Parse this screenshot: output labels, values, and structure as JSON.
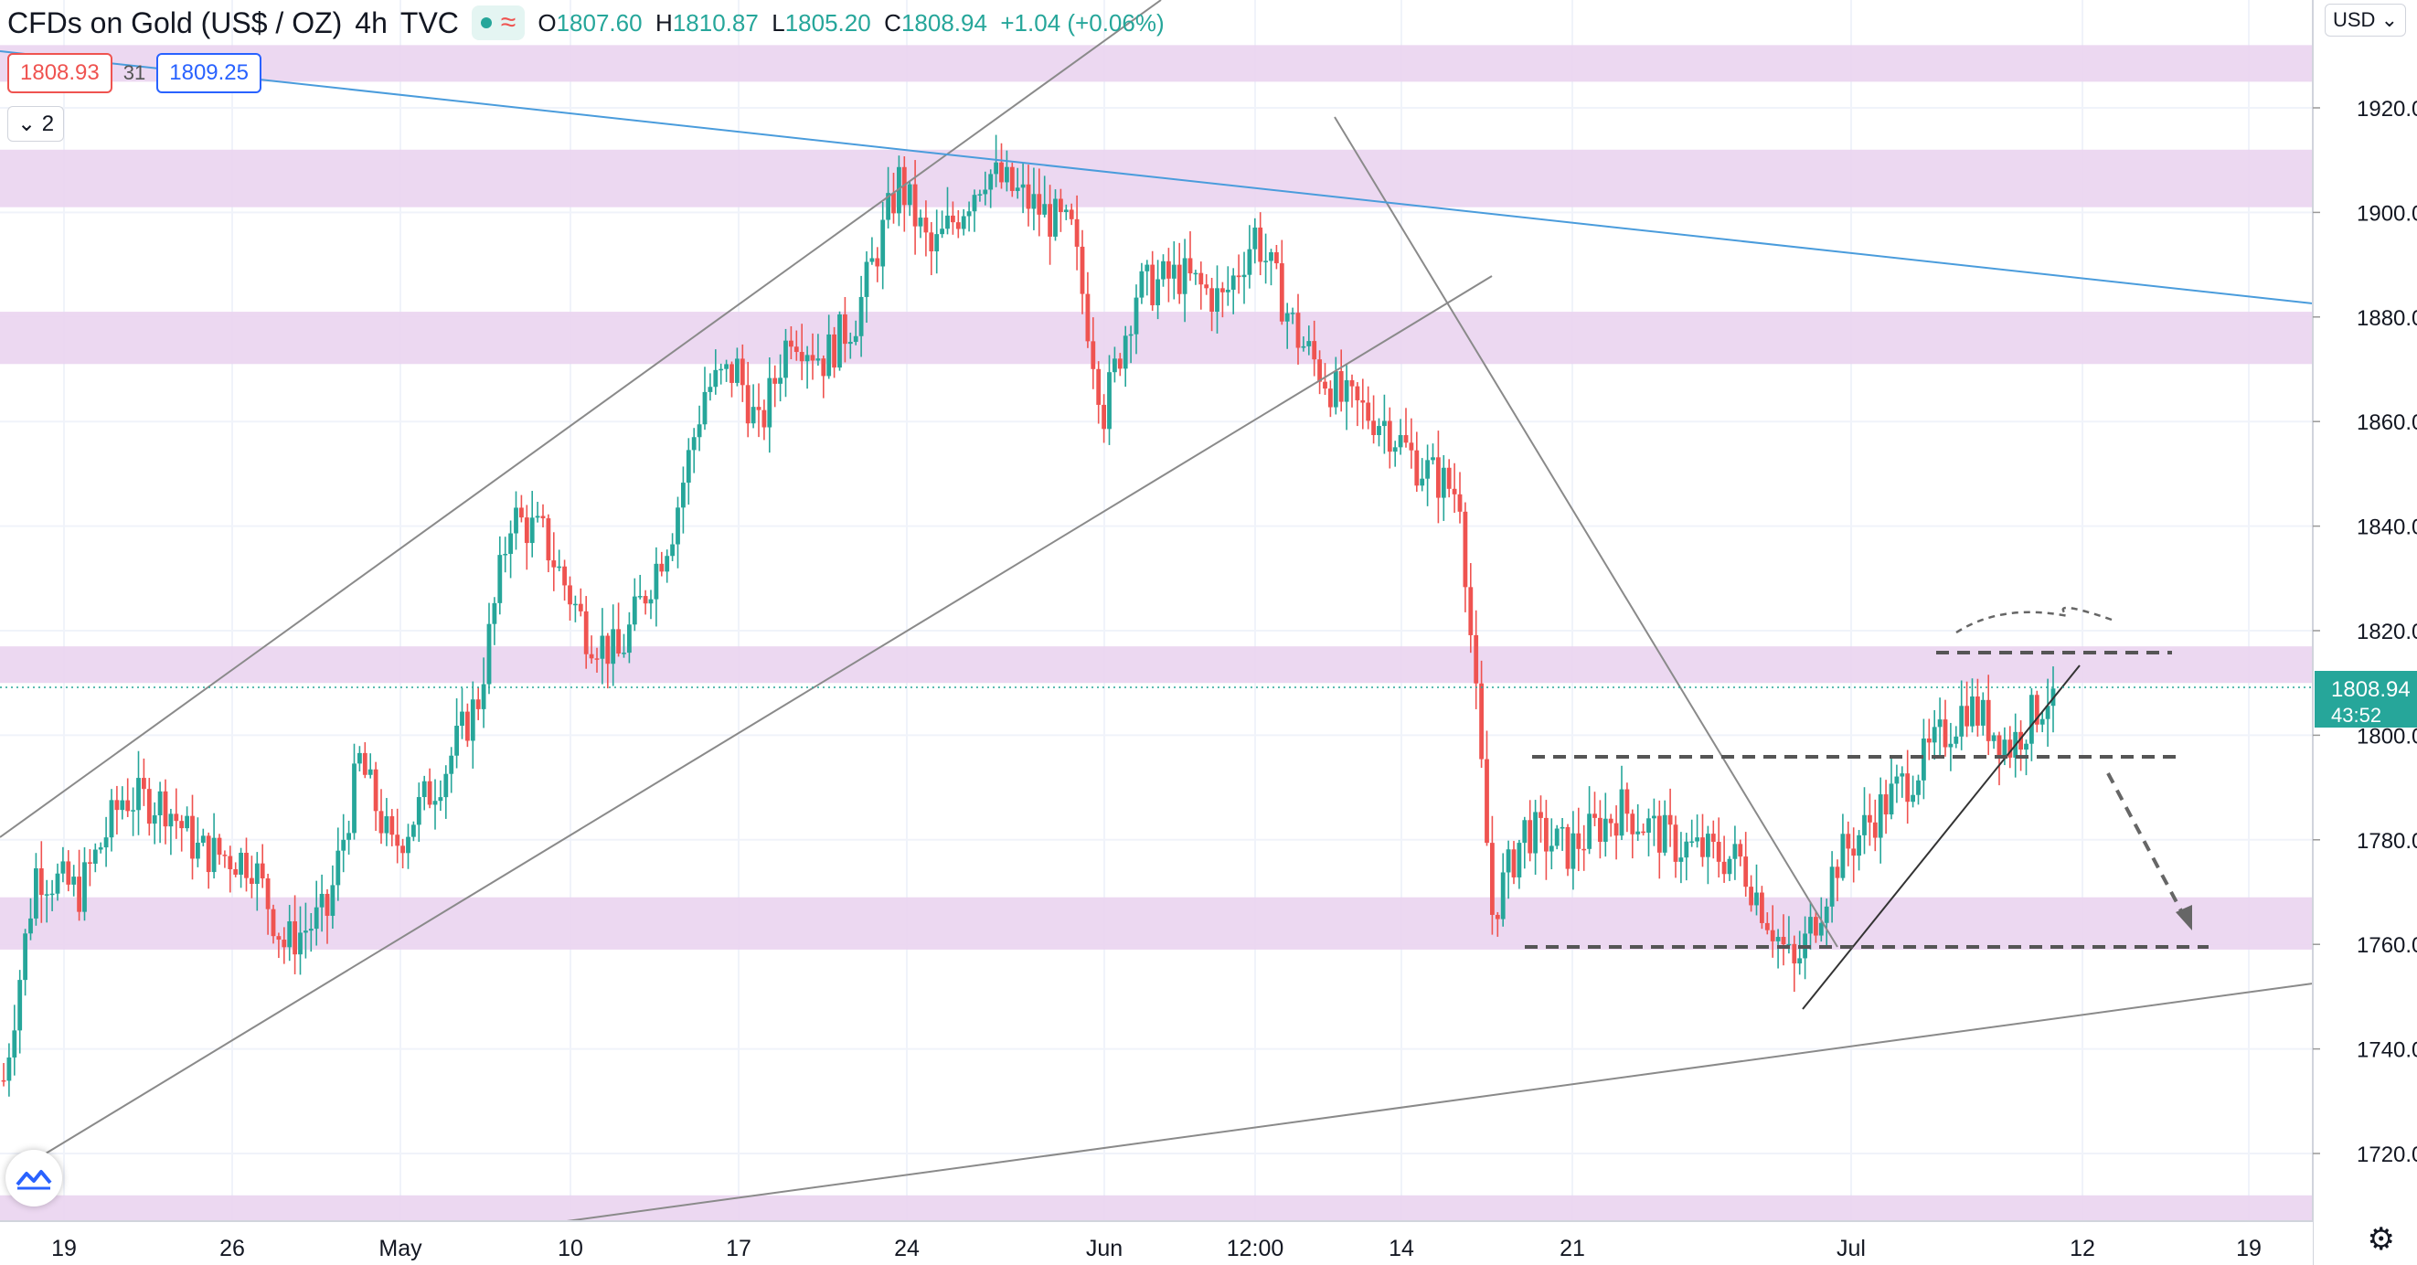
{
  "legend": {
    "symbol": "CFDs on Gold (US$ / OZ)",
    "interval": "4h",
    "source": "TVC",
    "status_wave": "≈",
    "open_label": "O",
    "open": "1807.60",
    "high_label": "H",
    "high": "1810.87",
    "low_label": "L",
    "low": "1805.20",
    "close_label": "C",
    "close": "1808.94",
    "change": "+1.04 (+0.06%)"
  },
  "trade": {
    "sell_price": "1808.93",
    "spread": "31",
    "buy_price": "1809.25"
  },
  "indicators_toggle": {
    "count": "2"
  },
  "currency_button": "USD",
  "last_price": {
    "price": "1808.94",
    "countdown": "43:52",
    "color": "#26a69a"
  },
  "colors": {
    "up": "#26a69a",
    "down": "#ef5350",
    "zone": "#ead4ef",
    "trendline": "#8a8a8a",
    "resistance_line": "#4a9cdc",
    "dashed": "#555555"
  },
  "chart_data": {
    "type": "candlestick",
    "title": "CFDs on Gold (US$ / OZ)",
    "y_axis": {
      "range": [
        1704,
        1928
      ],
      "ticks": [
        "1920.00",
        "1900.00",
        "1880.00",
        "1860.00",
        "1840.00",
        "1820.00",
        "1800.00",
        "1780.00",
        "1760.00",
        "1740.00",
        "1720.00"
      ]
    },
    "x_axis": {
      "ticks": [
        "19",
        "26",
        "May",
        "10",
        "17",
        "24",
        "Jun",
        "12:00",
        "14",
        "21",
        "Jul",
        "12",
        "19"
      ],
      "grid": true
    },
    "path_knots": [
      [
        0,
        1734
      ],
      [
        6,
        1774
      ],
      [
        14,
        1770
      ],
      [
        22,
        1788
      ],
      [
        30,
        1787
      ],
      [
        36,
        1778
      ],
      [
        46,
        1776
      ],
      [
        52,
        1760
      ],
      [
        60,
        1766
      ],
      [
        66,
        1795
      ],
      [
        72,
        1778
      ],
      [
        82,
        1794
      ],
      [
        88,
        1807
      ],
      [
        94,
        1842
      ],
      [
        100,
        1838
      ],
      [
        108,
        1820
      ],
      [
        114,
        1815
      ],
      [
        124,
        1840
      ],
      [
        130,
        1866
      ],
      [
        136,
        1870
      ],
      [
        140,
        1858
      ],
      [
        146,
        1878
      ],
      [
        152,
        1872
      ],
      [
        158,
        1880
      ],
      [
        166,
        1906
      ],
      [
        172,
        1892
      ],
      [
        182,
        1908
      ],
      [
        190,
        1902
      ],
      [
        198,
        1896
      ],
      [
        204,
        1862
      ],
      [
        210,
        1885
      ],
      [
        218,
        1888
      ],
      [
        226,
        1883
      ],
      [
        232,
        1896
      ],
      [
        240,
        1876
      ],
      [
        248,
        1864
      ],
      [
        256,
        1860
      ],
      [
        262,
        1852
      ],
      [
        270,
        1846
      ],
      [
        276,
        1766
      ],
      [
        282,
        1782
      ],
      [
        290,
        1778
      ],
      [
        300,
        1786
      ],
      [
        310,
        1779
      ],
      [
        322,
        1776
      ],
      [
        332,
        1755
      ],
      [
        340,
        1776
      ],
      [
        348,
        1786
      ],
      [
        356,
        1795
      ],
      [
        364,
        1806
      ],
      [
        372,
        1798
      ],
      [
        380,
        1809
      ]
    ],
    "zones_price": [
      [
        1925,
        1932
      ],
      [
        1901,
        1912
      ],
      [
        1871,
        1881
      ],
      [
        1810,
        1817
      ],
      [
        1759,
        1769
      ],
      [
        1706,
        1712
      ]
    ],
    "annotations": {
      "resistance_zone_high": 1815,
      "breakout_level": 1796,
      "support_level": 1759,
      "arc_note": "rounded top projection",
      "arrow_note": "projected drop to support"
    }
  }
}
